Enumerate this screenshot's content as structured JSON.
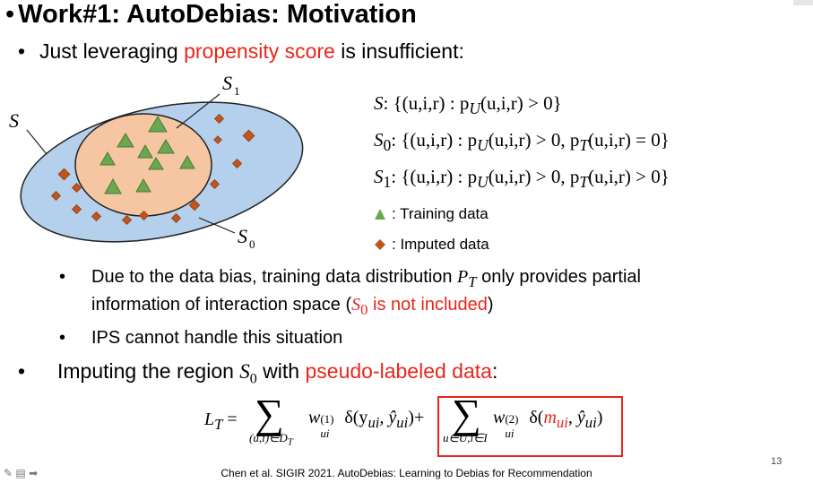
{
  "slide": {
    "title_bullet": "•",
    "title": "Work#1: AutoDebias: Motivation",
    "bullet1": {
      "prefix": "Just leveraging ",
      "highlight": "propensity score",
      "suffix": " is insufficient:"
    },
    "diagram": {
      "label_S": "S",
      "label_S1": "S",
      "label_S1_sub": "1",
      "label_S0": "S",
      "label_S0_sub": "0"
    },
    "defs": [
      {
        "lhs": "S",
        "lhs_sub": "",
        "rhs": ": {(u,i,r) : p",
        "rhs_sub": "U",
        "rhs_tail": "(u,i,r) > 0}"
      },
      {
        "lhs": "S",
        "lhs_sub": "0",
        "rhs": ": {(u,i,r) : p",
        "rhs_sub": "U",
        "rhs_tail": "(u,i,r) > 0, p",
        "rhs_sub2": "T",
        "rhs_tail2": "(u,i,r) = 0}"
      },
      {
        "lhs": "S",
        "lhs_sub": "1",
        "rhs": ": {(u,i,r) : p",
        "rhs_sub": "U",
        "rhs_tail": "(u,i,r) > 0, p",
        "rhs_sub2": "T",
        "rhs_tail2": "(u,i,r) > 0}"
      }
    ],
    "legend": {
      "training": ": Training data",
      "imputed": ": Imputed data"
    },
    "sub_bullets": [
      {
        "line1_a": "Due to the data bias, training data distribution ",
        "line1_var": "P",
        "line1_sub": "T",
        "line1_b": " only provides partial",
        "line2_a": "information of interaction space (",
        "line2_red_var": "S",
        "line2_red_sub": "0",
        "line2_red_text": " is not included",
        "line2_b": ")"
      },
      {
        "text": "IPS cannot handle this situation"
      }
    ],
    "bullet2": {
      "prefix": "Imputing the region ",
      "var": "S",
      "sub": "0",
      "mid": " with ",
      "highlight": "pseudo-labeled data",
      "suffix": ":"
    },
    "equation": {
      "lhs": "L",
      "lhs_sub": "T",
      "eq": "=",
      "sum1_under": "(u,i)∈D",
      "sum1_under_sub": "T",
      "w1": "w",
      "w1_sub": "ui",
      "w1_sup": "(1)",
      "delta1": "δ(y",
      "delta1_sub": "ui",
      "delta1_mid": ", ŷ",
      "delta1_sub2": "ui",
      "delta1_end": ")",
      "plus": "+",
      "sum2_under": "u∈U,i∈I",
      "w2": "w",
      "w2_sub": "ui",
      "w2_sup": "(2)",
      "delta2": "δ(",
      "m": "m",
      "m_sub": "ui",
      "delta2_mid": ", ŷ",
      "delta2_sub": "ui",
      "delta2_end": ")"
    },
    "citation": "Chen et al. SIGIR 2021. AutoDebias: Learning to Debias for Recommendation",
    "page_number": "13"
  },
  "colors": {
    "accent_red": "#e8261c",
    "outer_ellipse": "#b4d0ec",
    "inner_ellipse": "#f6c6a2",
    "triangle": "#6aa84f",
    "diamond": "#c0561e"
  }
}
